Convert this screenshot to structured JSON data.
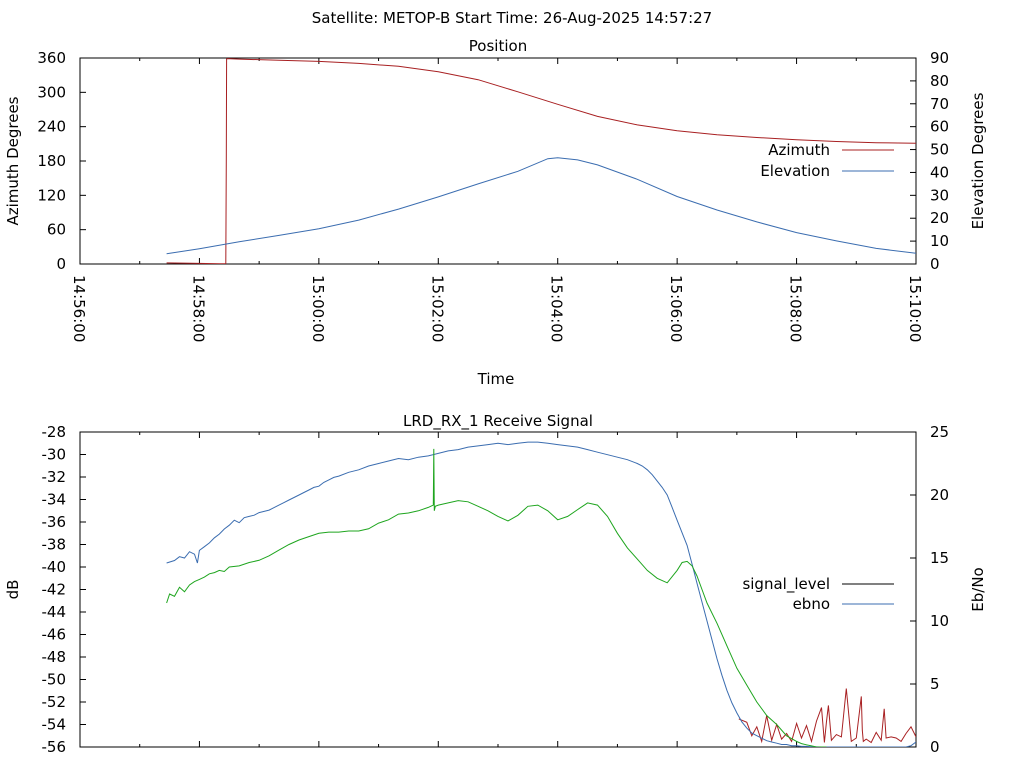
{
  "page_title": "Satellite: METOP-B    Start Time: 26-Aug-2025 14:57:27",
  "chart_data": [
    {
      "type": "line",
      "title": "Position",
      "xlabel": "Time",
      "ylabel_left": "Azimuth Degrees",
      "ylabel_right": "Elevation Degrees",
      "xlim": [
        0,
        840
      ],
      "ylim_left": [
        0,
        360
      ],
      "ylim_right": [
        0,
        90
      ],
      "x_ticks": [
        0,
        120,
        240,
        360,
        480,
        600,
        720,
        840
      ],
      "x_tick_labels": [
        "14:56:00",
        "14:58:00",
        "15:00:00",
        "15:02:00",
        "15:04:00",
        "15:06:00",
        "15:08:00",
        "15:10:00"
      ],
      "y_left_ticks": [
        0,
        60,
        120,
        180,
        240,
        300,
        360
      ],
      "y_right_ticks": [
        0,
        10,
        20,
        30,
        40,
        50,
        60,
        70,
        80,
        90
      ],
      "grid": false,
      "legend_position": "right",
      "series": [
        {
          "name": "Azimuth",
          "axis": "left",
          "color": "#a82022",
          "x": [
            87,
            120,
            140,
            146.5,
            147,
            147.3,
            148,
            160,
            200,
            240,
            280,
            320,
            360,
            400,
            440,
            480,
            520,
            560,
            600,
            640,
            680,
            720,
            760,
            800,
            840
          ],
          "y": [
            2,
            1,
            0.5,
            0.5,
            185,
            358,
            359,
            358,
            356,
            354,
            350.5,
            345.5,
            336,
            322,
            301,
            279,
            258,
            243,
            233,
            226,
            221,
            217,
            214,
            212,
            211
          ]
        },
        {
          "name": "Elevation",
          "axis": "right",
          "color": "#3b6db0",
          "x": [
            87,
            120,
            160,
            200,
            240,
            280,
            320,
            360,
            400,
            440,
            470,
            480,
            500,
            520,
            560,
            600,
            640,
            680,
            720,
            760,
            800,
            840
          ],
          "y": [
            4.5,
            6.7,
            9.7,
            12.5,
            15.4,
            19.2,
            24,
            29.3,
            35,
            40.5,
            46,
            46.4,
            45.5,
            43.3,
            37,
            29.5,
            23.6,
            18.4,
            13.7,
            10.1,
            6.8,
            4.7
          ]
        }
      ]
    },
    {
      "type": "line",
      "title": "LRD_RX_1 Receive Signal",
      "ylabel_left": "dB",
      "ylabel_right": "Eb/No",
      "xlim": [
        0,
        840
      ],
      "ylim_left": [
        -56,
        -28
      ],
      "ylim_right": [
        0,
        25
      ],
      "x_ticks": [
        0,
        120,
        240,
        360,
        480,
        600,
        720,
        840
      ],
      "y_left_ticks": [
        -56,
        -54,
        -52,
        -50,
        -48,
        -46,
        -44,
        -42,
        -40,
        -38,
        -36,
        -34,
        -32,
        -30,
        -28
      ],
      "y_right_ticks": [
        0,
        5,
        10,
        15,
        20,
        25
      ],
      "grid": false,
      "legend_position": "right",
      "series": [
        {
          "name": "signal_level",
          "axis": "left",
          "color": "#a82022",
          "x": [
            662,
            670,
            675,
            680,
            685,
            690,
            695,
            700,
            705,
            710,
            715,
            720,
            725,
            730,
            735,
            740,
            745,
            748,
            750,
            752,
            755,
            760,
            765,
            770,
            775,
            780,
            785,
            786,
            787,
            790,
            795,
            800,
            805,
            808,
            810,
            815,
            820,
            825,
            830,
            835,
            840
          ],
          "y": [
            -53.5,
            -53.8,
            -55,
            -54.2,
            -55.5,
            -53.2,
            -55.4,
            -54,
            -55.3,
            -54.8,
            -55.5,
            -53.9,
            -55.2,
            -54.1,
            -55.5,
            -53.7,
            -52.5,
            -55.6,
            -53.8,
            -52.3,
            -55.4,
            -54.9,
            -55.1,
            -50.8,
            -55.5,
            -55.2,
            -51.5,
            -54.5,
            -55.5,
            -55.3,
            -55.6,
            -54.7,
            -55.4,
            -52.6,
            -55.2,
            -55.1,
            -55.2,
            -55.5,
            -54.8,
            -54.2,
            -55.1
          ]
        },
        {
          "name": "ebno",
          "axis": "right",
          "color": "#3b6db0",
          "x": [
            87,
            95,
            100,
            105,
            110,
            115,
            118,
            120,
            125,
            130,
            135,
            140,
            145,
            150,
            155,
            160,
            165,
            170,
            175,
            180,
            185,
            190,
            195,
            200,
            205,
            210,
            215,
            220,
            225,
            230,
            235,
            240,
            245,
            250,
            255,
            260,
            270,
            280,
            290,
            300,
            310,
            320,
            330,
            340,
            350,
            360,
            370,
            380,
            390,
            400,
            410,
            420,
            430,
            440,
            450,
            460,
            470,
            480,
            490,
            500,
            510,
            520,
            530,
            540,
            550,
            560,
            565,
            570,
            575,
            580,
            585,
            590,
            595,
            600,
            605,
            610,
            615,
            620,
            625,
            630,
            635,
            640,
            645,
            650,
            655,
            660,
            665,
            670,
            675,
            680,
            685,
            690,
            695,
            700,
            705,
            710,
            715,
            720,
            725,
            730,
            735,
            740,
            745,
            750,
            755,
            760,
            765,
            770,
            775,
            780,
            785,
            790,
            795,
            800,
            805,
            810,
            815,
            820,
            825,
            830,
            835,
            840
          ],
          "y": [
            14.6,
            14.8,
            15.1,
            15.0,
            15.5,
            15.3,
            14.6,
            15.6,
            15.9,
            16.2,
            16.6,
            16.9,
            17.3,
            17.6,
            18.0,
            17.8,
            18.2,
            18.3,
            18.4,
            18.6,
            18.7,
            18.8,
            19.0,
            19.2,
            19.4,
            19.6,
            19.8,
            20.0,
            20.2,
            20.4,
            20.6,
            20.7,
            21.0,
            21.2,
            21.4,
            21.5,
            21.8,
            22.0,
            22.3,
            22.5,
            22.7,
            22.9,
            22.8,
            23.0,
            23.1,
            23.3,
            23.5,
            23.6,
            23.8,
            23.9,
            24.0,
            24.1,
            24.0,
            24.1,
            24.2,
            24.2,
            24.1,
            24.0,
            23.9,
            23.8,
            23.6,
            23.4,
            23.2,
            23.0,
            22.8,
            22.5,
            22.3,
            22.0,
            21.6,
            21.1,
            20.6,
            20.0,
            19.0,
            18.0,
            17.0,
            16.0,
            14.5,
            13.0,
            11.5,
            10.0,
            8.5,
            7.0,
            5.7,
            4.5,
            3.5,
            2.7,
            2.0,
            1.5,
            1.1,
            0.9,
            0.7,
            0.5,
            0.4,
            0.3,
            0.2,
            0.2,
            0.1,
            0.1,
            0.05,
            0.05,
            0.02,
            0.01,
            0,
            0,
            0,
            0,
            0,
            0,
            0,
            0,
            0,
            0,
            0,
            0,
            0,
            0,
            0,
            0,
            0,
            0,
            0.1,
            0.4
          ]
        },
        {
          "name": "",
          "axis": "left",
          "color": "#1ea51e",
          "x": [
            87,
            90,
            95,
            100,
            105,
            110,
            115,
            120,
            125,
            130,
            135,
            140,
            145,
            150,
            160,
            170,
            180,
            190,
            200,
            210,
            220,
            230,
            240,
            250,
            260,
            270,
            280,
            290,
            300,
            310,
            320,
            330,
            340,
            350,
            355,
            355.5,
            356,
            357,
            360,
            370,
            380,
            390,
            400,
            410,
            420,
            430,
            440,
            450,
            460,
            470,
            480,
            490,
            500,
            510,
            520,
            530,
            540,
            550,
            560,
            570,
            580,
            590,
            600,
            605,
            610,
            615,
            620,
            625,
            630,
            640,
            650,
            660,
            670,
            680,
            690,
            700,
            710,
            720,
            725,
            730,
            735,
            740,
            745,
            750
          ],
          "y": [
            -43.2,
            -42.4,
            -42.6,
            -41.8,
            -42.2,
            -41.6,
            -41.3,
            -41.1,
            -40.9,
            -40.6,
            -40.5,
            -40.3,
            -40.4,
            -40.0,
            -39.9,
            -39.6,
            -39.4,
            -39.0,
            -38.5,
            -38.0,
            -37.6,
            -37.3,
            -37.0,
            -36.9,
            -36.9,
            -36.8,
            -36.8,
            -36.6,
            -36.1,
            -35.8,
            -35.3,
            -35.2,
            -35.0,
            -34.7,
            -34.5,
            -29.5,
            -35.0,
            -34.6,
            -34.5,
            -34.3,
            -34.1,
            -34.2,
            -34.6,
            -35.0,
            -35.5,
            -35.9,
            -35.4,
            -34.6,
            -34.5,
            -35.0,
            -35.8,
            -35.5,
            -34.9,
            -34.3,
            -34.5,
            -35.5,
            -37.0,
            -38.3,
            -39.3,
            -40.3,
            -41.0,
            -41.4,
            -40.3,
            -39.6,
            -39.5,
            -39.9,
            -40.8,
            -42.0,
            -43.2,
            -45.0,
            -47.0,
            -49.0,
            -50.5,
            -52.0,
            -53.2,
            -54.0,
            -55.0,
            -55.5,
            -55.7,
            -55.8,
            -55.9,
            -56.0,
            -56.0,
            -56.0
          ]
        }
      ]
    }
  ]
}
